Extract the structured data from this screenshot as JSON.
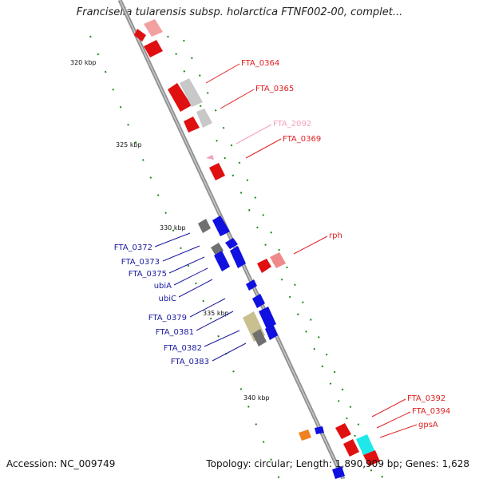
{
  "title": "Francisella tularensis subsp. holarctica FTNF002-00, complet...",
  "footer": {
    "accession": "Accession: NC_009749",
    "stats": "Topology: circular; Length: 1,890,909 bp; Genes: 1,628"
  },
  "ruler_labels": [
    "320 kbp",
    "325 kbp",
    "330 kbp",
    "335 kbp",
    "340 kbp"
  ],
  "gene_labels_right": [
    {
      "name": "FTA_0364",
      "color": "#e02020"
    },
    {
      "name": "FTA_0365",
      "color": "#e02020"
    },
    {
      "name": "FTA_2092",
      "color": "#f4a0b8"
    },
    {
      "name": "FTA_0369",
      "color": "#e02020"
    },
    {
      "name": "rph",
      "color": "#e02020"
    },
    {
      "name": "FTA_0392",
      "color": "#e02020"
    },
    {
      "name": "FTA_0394",
      "color": "#e02020"
    },
    {
      "name": "gpsA",
      "color": "#e02020"
    }
  ],
  "gene_labels_left": [
    {
      "name": "FTA_0372",
      "color": "#1a1aa0"
    },
    {
      "name": "FTA_0373",
      "color": "#1a1aa0"
    },
    {
      "name": "FTA_0375",
      "color": "#1a1aa0"
    },
    {
      "name": "ubiA",
      "color": "#1a1aa0"
    },
    {
      "name": "ubiC",
      "color": "#1a1aa0"
    },
    {
      "name": "FTA_0379",
      "color": "#1a1aa0"
    },
    {
      "name": "FTA_0381",
      "color": "#1a1aa0"
    },
    {
      "name": "FTA_0382",
      "color": "#1a1aa0"
    },
    {
      "name": "FTA_0383",
      "color": "#1a1aa0"
    }
  ],
  "colors": {
    "backbone": "#9a9a9a",
    "forward_gene": "#e01010",
    "reverse_gene": "#1010e0",
    "pseudo": "#8a8a8a",
    "tick": "#1a8a1a"
  }
}
